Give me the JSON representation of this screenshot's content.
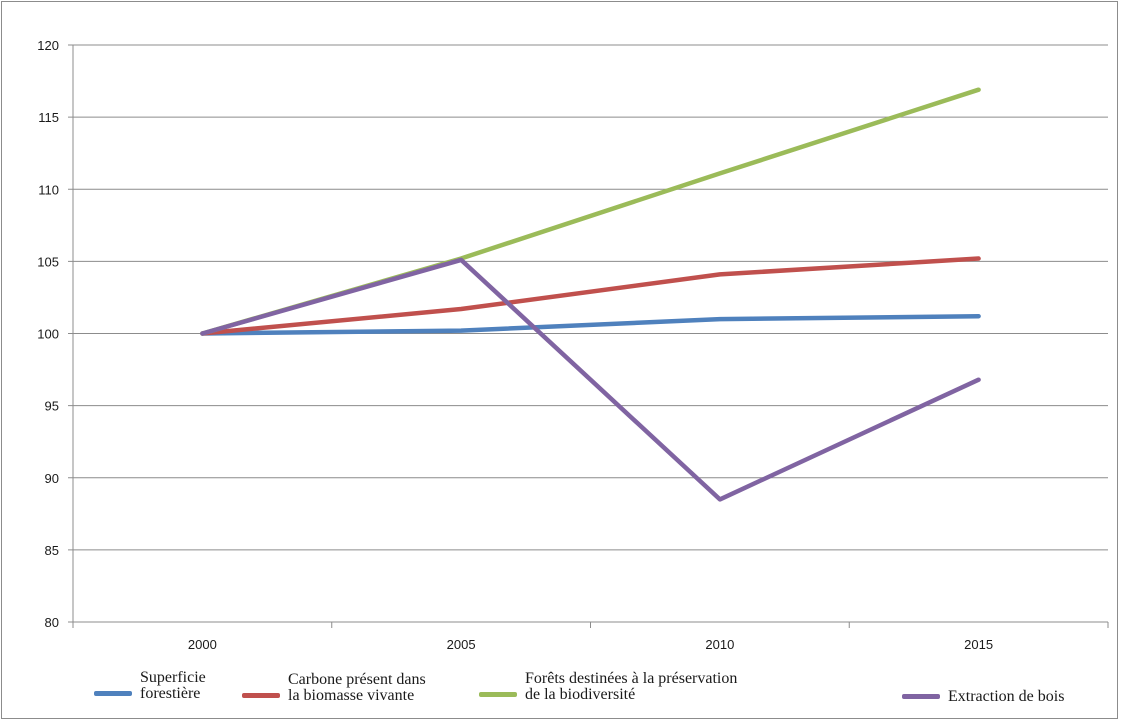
{
  "chart_data": {
    "type": "line",
    "categories": [
      "2000",
      "2005",
      "2010",
      "2015"
    ],
    "ylim": [
      80,
      120
    ],
    "yticks": [
      80,
      85,
      90,
      95,
      100,
      105,
      110,
      115,
      120
    ],
    "grid": true,
    "legend_position": "bottom",
    "series": [
      {
        "name": "Superficie\nforestière",
        "color": "#4f81bd",
        "values": [
          100,
          100.2,
          101.0,
          101.2
        ]
      },
      {
        "name": "Carbone présent dans\nla biomasse vivante",
        "color": "#c0504d",
        "values": [
          100,
          101.7,
          104.1,
          105.2
        ]
      },
      {
        "name": "Forêts destinées à la préservation\nde la biodiversité",
        "color": "#9bbb59",
        "values": [
          100,
          105.2,
          111.1,
          116.9
        ]
      },
      {
        "name": "Extraction de bois",
        "color": "#8064a2",
        "values": [
          100,
          105.1,
          88.5,
          96.8
        ]
      }
    ]
  }
}
